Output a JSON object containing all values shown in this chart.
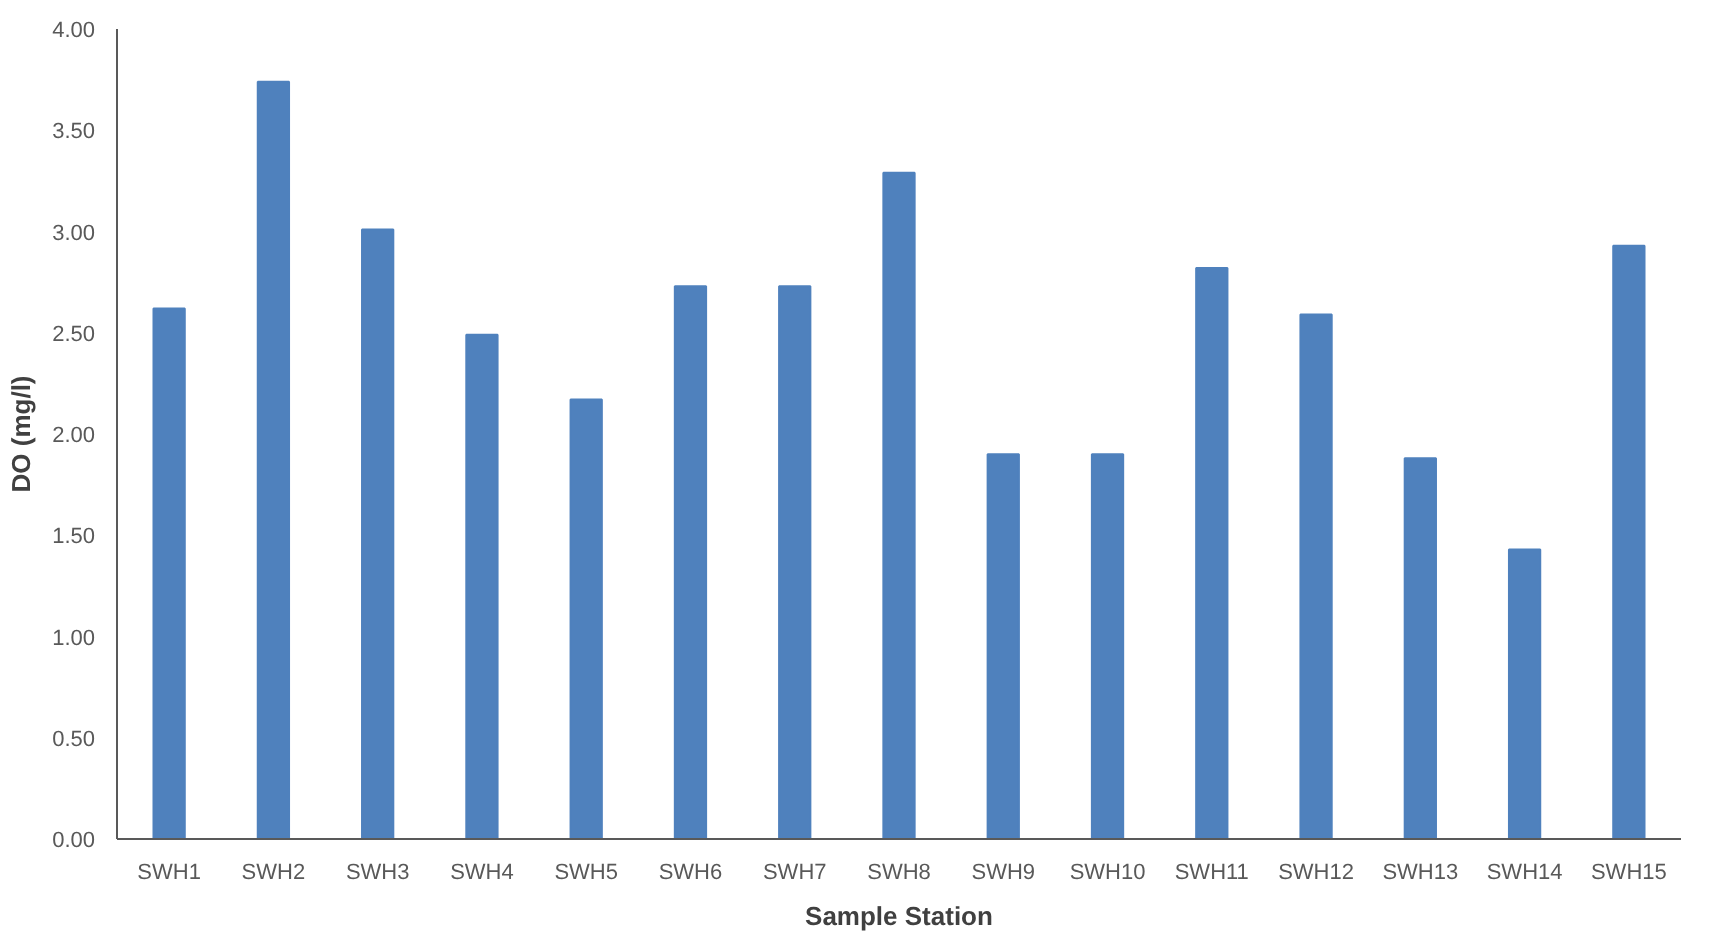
{
  "chart_data": {
    "type": "bar",
    "xlabel": "Sample Station",
    "ylabel": "DO (mg/l)",
    "categories": [
      "SWH1",
      "SWH2",
      "SWH3",
      "SWH4",
      "SWH5",
      "SWH6",
      "SWH7",
      "SWH8",
      "SWH9",
      "SWH10",
      "SWH11",
      "SWH12",
      "SWH13",
      "SWH14",
      "SWH15"
    ],
    "values": [
      2.62,
      3.74,
      3.01,
      2.49,
      2.17,
      2.73,
      2.73,
      3.29,
      1.9,
      1.9,
      2.82,
      2.59,
      1.88,
      1.43,
      2.93
    ],
    "color": "#4f81bd",
    "ylim": [
      0,
      4
    ],
    "yticks": [
      {
        "value": 0,
        "label": "0.00"
      },
      {
        "value": 0.5,
        "label": "0.50"
      },
      {
        "value": 1,
        "label": "1.00"
      },
      {
        "value": 1.5,
        "label": "1.50"
      },
      {
        "value": 2,
        "label": "2.00"
      },
      {
        "value": 2.5,
        "label": "2.50"
      },
      {
        "value": 3,
        "label": "3.00"
      },
      {
        "value": 3.5,
        "label": "3.50"
      },
      {
        "value": 4,
        "label": "4.00"
      }
    ],
    "grid": false
  }
}
